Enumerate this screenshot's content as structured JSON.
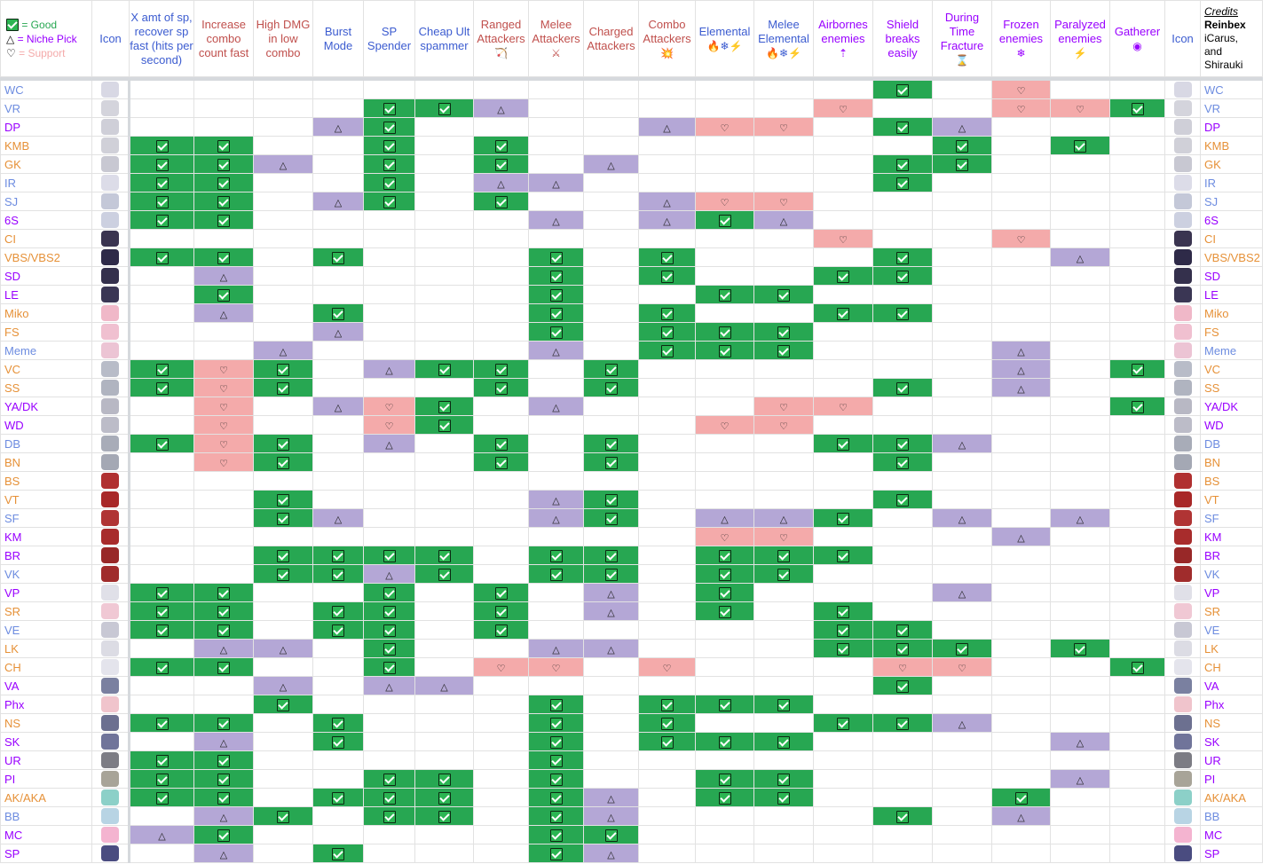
{
  "legend": {
    "good": "= Good",
    "niche": "= Niche Pick",
    "support": "= Support",
    "triangle_glyph": "△",
    "heart_glyph": "♡"
  },
  "credits": {
    "title": "Credits",
    "line1": "Reinbex",
    "line2": "iCarus,",
    "line3": "and",
    "line4": "Shirauki"
  },
  "icon_header": "Icon",
  "columns": [
    {
      "label": "X amt of sp, recover sp fast (hits per second)",
      "color": "#3c5cd0",
      "icon": ""
    },
    {
      "label": "Increase combo count fast",
      "color": "#c0504d",
      "icon": ""
    },
    {
      "label": "High DMG in low combo",
      "color": "#c0504d",
      "icon": ""
    },
    {
      "label": "Burst Mode",
      "color": "#3c5cd0",
      "icon": ""
    },
    {
      "label": "SP Spender",
      "color": "#3c5cd0",
      "icon": ""
    },
    {
      "label": "Cheap Ult spammer",
      "color": "#3c5cd0",
      "icon": ""
    },
    {
      "label": "Ranged Attackers",
      "color": "#c0504d",
      "icon": "🏹"
    },
    {
      "label": "Melee Attackers",
      "color": "#c0504d",
      "icon": "⚔"
    },
    {
      "label": "Charged Attackers",
      "color": "#c0504d",
      "icon": ""
    },
    {
      "label": "Combo Attackers",
      "color": "#c0504d",
      "icon": "💥"
    },
    {
      "label": "Elemental",
      "color": "#3c5cd0",
      "icon": "🔥❄⚡"
    },
    {
      "label": "Melee Elemental",
      "color": "#3c5cd0",
      "icon": "🔥❄⚡"
    },
    {
      "label": "Airbornes enemies",
      "color": "#9900ff",
      "icon": "⇡"
    },
    {
      "label": "Shield breaks easily",
      "color": "#9900ff",
      "icon": ""
    },
    {
      "label": "During Time Fracture",
      "color": "#9900ff",
      "icon": "⌛"
    },
    {
      "label": "Frozen enemies",
      "color": "#9900ff",
      "icon": "❄"
    },
    {
      "label": "Paralyzed enemies",
      "color": "#9900ff",
      "icon": "⚡"
    },
    {
      "label": "Gatherer",
      "color": "#9900ff",
      "icon": "◉"
    }
  ],
  "colors": {
    "good": "#27a752",
    "niche": "#b4a7d6",
    "support": "#f4aaaa",
    "name_blue": "#6d8ce0",
    "name_purple": "#9900ff",
    "name_orange": "#e69138"
  },
  "rows": [
    {
      "name": "WC",
      "color": "#6d8ce0",
      "avatar": "#d8d8e4",
      "cells": [
        "",
        "",
        "",
        "",
        "",
        "",
        "",
        "",
        "",
        "",
        "",
        "",
        "",
        "g",
        "",
        "s",
        "",
        ""
      ]
    },
    {
      "name": "VR",
      "color": "#6d8ce0",
      "avatar": "#d4d4dc",
      "cells": [
        "",
        "",
        "",
        "",
        "g",
        "g",
        "n",
        "",
        "",
        "",
        "",
        "",
        "s",
        "",
        "",
        "s",
        "s",
        "g"
      ]
    },
    {
      "name": "DP",
      "color": "#9900ff",
      "avatar": "#cfcfd8",
      "cells": [
        "",
        "",
        "",
        "n",
        "g",
        "",
        "",
        "",
        "",
        "n",
        "s",
        "s",
        "",
        "g",
        "n",
        "",
        "",
        ""
      ]
    },
    {
      "name": "KMB",
      "color": "#e69138",
      "avatar": "#d0d0d8",
      "cells": [
        "g",
        "g",
        "",
        "",
        "g",
        "",
        "g",
        "",
        "",
        "",
        "",
        "",
        "",
        "",
        "g",
        "",
        "g",
        ""
      ]
    },
    {
      "name": "GK",
      "color": "#e69138",
      "avatar": "#c8c8d2",
      "cells": [
        "g",
        "g",
        "n",
        "",
        "g",
        "",
        "g",
        "",
        "n",
        "",
        "",
        "",
        "",
        "g",
        "g",
        "",
        "",
        ""
      ]
    },
    {
      "name": "IR",
      "color": "#6d8ce0",
      "avatar": "#dcdce8",
      "cells": [
        "g",
        "g",
        "",
        "",
        "g",
        "",
        "n",
        "n",
        "",
        "",
        "",
        "",
        "",
        "g",
        "",
        "",
        "",
        ""
      ]
    },
    {
      "name": "SJ",
      "color": "#6d8ce0",
      "avatar": "#c4c8d8",
      "cells": [
        "g",
        "g",
        "",
        "n",
        "g",
        "",
        "g",
        "",
        "",
        "n",
        "s",
        "s",
        "",
        "",
        "",
        "",
        "",
        ""
      ]
    },
    {
      "name": "6S",
      "color": "#9900ff",
      "avatar": "#ccd0e0",
      "cells": [
        "g",
        "g",
        "",
        "",
        "",
        "",
        "",
        "n",
        "",
        "n",
        "g",
        "n",
        "",
        "",
        "",
        "",
        "",
        ""
      ]
    },
    {
      "name": "CI",
      "color": "#e69138",
      "avatar": "#3a3450",
      "cells": [
        "",
        "",
        "",
        "",
        "",
        "",
        "",
        "",
        "",
        "",
        "",
        "",
        "s",
        "",
        "",
        "s",
        "",
        ""
      ]
    },
    {
      "name": "VBS/VBS2",
      "color": "#e69138",
      "avatar": "#2e2a48",
      "cells": [
        "g",
        "g",
        "",
        "g",
        "",
        "",
        "",
        "g",
        "",
        "g",
        "",
        "",
        "",
        "g",
        "",
        "",
        "n",
        ""
      ]
    },
    {
      "name": "SD",
      "color": "#9900ff",
      "avatar": "#34304c",
      "cells": [
        "",
        "n",
        "",
        "",
        "",
        "",
        "",
        "g",
        "",
        "g",
        "",
        "",
        "g",
        "g",
        "",
        "",
        "",
        ""
      ]
    },
    {
      "name": "LE",
      "color": "#9900ff",
      "avatar": "#3a3654",
      "cells": [
        "",
        "g",
        "",
        "",
        "",
        "",
        "",
        "g",
        "",
        "",
        "g",
        "g",
        "",
        "",
        "",
        "",
        "",
        ""
      ]
    },
    {
      "name": "Miko",
      "color": "#e69138",
      "avatar": "#f0b8c8",
      "cells": [
        "",
        "n",
        "",
        "g",
        "",
        "",
        "",
        "g",
        "",
        "g",
        "",
        "",
        "g",
        "g",
        "",
        "",
        "",
        ""
      ]
    },
    {
      "name": "FS",
      "color": "#e69138",
      "avatar": "#f0c0d0",
      "cells": [
        "",
        "",
        "",
        "n",
        "",
        "",
        "",
        "g",
        "",
        "g",
        "g",
        "g",
        "",
        "",
        "",
        "",
        "",
        ""
      ]
    },
    {
      "name": "Meme",
      "color": "#6d8ce0",
      "avatar": "#ecc4d4",
      "cells": [
        "",
        "",
        "n",
        "",
        "",
        "",
        "",
        "n",
        "",
        "g",
        "g",
        "g",
        "",
        "",
        "",
        "n",
        "",
        ""
      ]
    },
    {
      "name": "VC",
      "color": "#e69138",
      "avatar": "#b8bcc8",
      "cells": [
        "g",
        "s",
        "g",
        "",
        "n",
        "g",
        "g",
        "",
        "g",
        "",
        "",
        "",
        "",
        "",
        "",
        "n",
        "",
        "g"
      ]
    },
    {
      "name": "SS",
      "color": "#e69138",
      "avatar": "#b0b4c0",
      "cells": [
        "g",
        "s",
        "g",
        "",
        "",
        "",
        "g",
        "",
        "g",
        "",
        "",
        "",
        "",
        "g",
        "",
        "n",
        "",
        ""
      ]
    },
    {
      "name": "YA/DK",
      "color": "#9900ff",
      "avatar": "#b8b8c4",
      "cells": [
        "",
        "s",
        "",
        "n",
        "s",
        "g",
        "",
        "n",
        "",
        "",
        "",
        "s",
        "s",
        "",
        "",
        "",
        "",
        "g"
      ]
    },
    {
      "name": "WD",
      "color": "#9900ff",
      "avatar": "#bcbcc8",
      "cells": [
        "",
        "s",
        "",
        "",
        "s",
        "g",
        "",
        "",
        "",
        "",
        "s",
        "s",
        "",
        "",
        "",
        "",
        "",
        ""
      ]
    },
    {
      "name": "DB",
      "color": "#6d8ce0",
      "avatar": "#a8acb8",
      "cells": [
        "g",
        "s",
        "g",
        "",
        "n",
        "",
        "g",
        "",
        "g",
        "",
        "",
        "",
        "g",
        "g",
        "n",
        "",
        "",
        ""
      ]
    },
    {
      "name": "BN",
      "color": "#e69138",
      "avatar": "#a4a8b4",
      "cells": [
        "",
        "s",
        "g",
        "",
        "",
        "",
        "g",
        "",
        "g",
        "",
        "",
        "",
        "",
        "g",
        "",
        "",
        "",
        ""
      ]
    },
    {
      "name": "BS",
      "color": "#e69138",
      "avatar": "#b03030",
      "cells": [
        "",
        "",
        "",
        "",
        "",
        "",
        "",
        "",
        "",
        "",
        "",
        "",
        "",
        "",
        "",
        "",
        "",
        ""
      ]
    },
    {
      "name": "VT",
      "color": "#e69138",
      "avatar": "#a82828",
      "cells": [
        "",
        "",
        "g",
        "",
        "",
        "",
        "",
        "n",
        "g",
        "",
        "",
        "",
        "",
        "g",
        "",
        "",
        "",
        ""
      ]
    },
    {
      "name": "SF",
      "color": "#6d8ce0",
      "avatar": "#b03434",
      "cells": [
        "",
        "",
        "g",
        "n",
        "",
        "",
        "",
        "n",
        "g",
        "",
        "n",
        "n",
        "g",
        "",
        "n",
        "",
        "n",
        ""
      ]
    },
    {
      "name": "KM",
      "color": "#9900ff",
      "avatar": "#a82c2c",
      "cells": [
        "",
        "",
        "",
        "",
        "",
        "",
        "",
        "",
        "",
        "",
        "s",
        "s",
        "",
        "",
        "",
        "n",
        "",
        ""
      ]
    },
    {
      "name": "BR",
      "color": "#9900ff",
      "avatar": "#982828",
      "cells": [
        "",
        "",
        "g",
        "g",
        "g",
        "g",
        "",
        "g",
        "g",
        "",
        "g",
        "g",
        "g",
        "",
        "",
        "",
        "",
        ""
      ]
    },
    {
      "name": "VK",
      "color": "#6d8ce0",
      "avatar": "#a02c2c",
      "cells": [
        "",
        "",
        "g",
        "g",
        "n",
        "g",
        "",
        "g",
        "g",
        "",
        "g",
        "g",
        "",
        "",
        "",
        "",
        "",
        ""
      ]
    },
    {
      "name": "VP",
      "color": "#9900ff",
      "avatar": "#e0e0e8",
      "cells": [
        "g",
        "g",
        "",
        "",
        "g",
        "",
        "g",
        "",
        "n",
        "",
        "g",
        "",
        "",
        "",
        "n",
        "",
        "",
        ""
      ]
    },
    {
      "name": "SR",
      "color": "#e69138",
      "avatar": "#f0c8d4",
      "cells": [
        "g",
        "g",
        "",
        "g",
        "g",
        "",
        "g",
        "",
        "n",
        "",
        "g",
        "",
        "g",
        "",
        "",
        "",
        "",
        ""
      ]
    },
    {
      "name": "VE",
      "color": "#6d8ce0",
      "avatar": "#c8c8d4",
      "cells": [
        "g",
        "g",
        "",
        "g",
        "g",
        "",
        "g",
        "",
        "",
        "",
        "",
        "",
        "g",
        "g",
        "",
        "",
        "",
        ""
      ]
    },
    {
      "name": "LK",
      "color": "#e69138",
      "avatar": "#dcdce4",
      "cells": [
        "",
        "n",
        "n",
        "",
        "g",
        "",
        "",
        "n",
        "n",
        "",
        "",
        "",
        "g",
        "g",
        "g",
        "",
        "g",
        ""
      ]
    },
    {
      "name": "CH",
      "color": "#e69138",
      "avatar": "#e4e4ec",
      "cells": [
        "g",
        "g",
        "",
        "",
        "g",
        "",
        "s",
        "s",
        "",
        "s",
        "",
        "",
        "",
        "s",
        "s",
        "",
        "",
        "g"
      ]
    },
    {
      "name": "VA",
      "color": "#9900ff",
      "avatar": "#7a80a0",
      "cells": [
        "",
        "",
        "n",
        "",
        "n",
        "n",
        "",
        "",
        "",
        "",
        "",
        "",
        "",
        "g",
        "",
        "",
        "",
        ""
      ]
    },
    {
      "name": "Phx",
      "color": "#9900ff",
      "avatar": "#f0c4cc",
      "cells": [
        "",
        "",
        "g",
        "",
        "",
        "",
        "",
        "g",
        "",
        "g",
        "g",
        "g",
        "",
        "",
        "",
        "",
        "",
        ""
      ]
    },
    {
      "name": "NS",
      "color": "#e69138",
      "avatar": "#6c7090",
      "cells": [
        "g",
        "g",
        "",
        "g",
        "",
        "",
        "",
        "g",
        "",
        "g",
        "",
        "",
        "g",
        "g",
        "n",
        "",
        "",
        ""
      ]
    },
    {
      "name": "SK",
      "color": "#9900ff",
      "avatar": "#70749a",
      "cells": [
        "",
        "n",
        "",
        "g",
        "",
        "",
        "",
        "g",
        "",
        "g",
        "g",
        "g",
        "",
        "",
        "",
        "",
        "n",
        ""
      ]
    },
    {
      "name": "UR",
      "color": "#9900ff",
      "avatar": "#7c7c84",
      "cells": [
        "g",
        "g",
        "",
        "",
        "",
        "",
        "",
        "g",
        "",
        "",
        "",
        "",
        "",
        "",
        "",
        "",
        "",
        ""
      ]
    },
    {
      "name": "PI",
      "color": "#9900ff",
      "avatar": "#a8a498",
      "cells": [
        "g",
        "g",
        "",
        "",
        "g",
        "g",
        "",
        "g",
        "",
        "",
        "g",
        "g",
        "",
        "",
        "",
        "",
        "n",
        ""
      ]
    },
    {
      "name": "AK/AKA",
      "color": "#e69138",
      "avatar": "#8cd0c8",
      "cells": [
        "g",
        "g",
        "",
        "g",
        "g",
        "g",
        "",
        "g",
        "n",
        "",
        "g",
        "g",
        "",
        "",
        "",
        "g",
        "",
        ""
      ]
    },
    {
      "name": "BB",
      "color": "#6d8ce0",
      "avatar": "#b8d4e4",
      "cells": [
        "",
        "n",
        "g",
        "",
        "g",
        "g",
        "",
        "g",
        "n",
        "",
        "",
        "",
        "",
        "g",
        "",
        "n",
        "",
        ""
      ]
    },
    {
      "name": "MC",
      "color": "#9900ff",
      "avatar": "#f4b4d0",
      "cells": [
        "n",
        "g",
        "",
        "",
        "",
        "",
        "",
        "g",
        "g",
        "",
        "",
        "",
        "",
        "",
        "",
        "",
        "",
        ""
      ]
    },
    {
      "name": "SP",
      "color": "#9900ff",
      "avatar": "#4a4c80",
      "cells": [
        "",
        "n",
        "",
        "g",
        "",
        "",
        "",
        "g",
        "n",
        "",
        "",
        "",
        "",
        "",
        "",
        "",
        "",
        ""
      ]
    }
  ]
}
